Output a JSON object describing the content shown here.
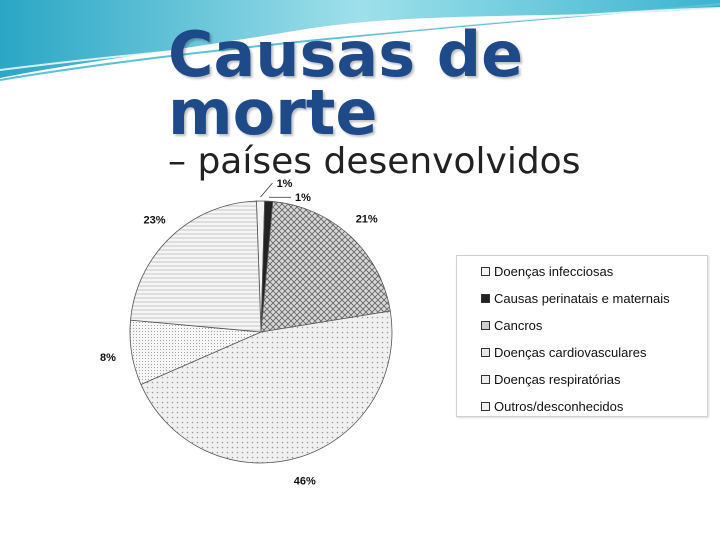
{
  "title": {
    "line1": "Causas de",
    "line2": "morte",
    "subtitle": "– países desenvolvidos"
  },
  "colors": {
    "title": "#1f4a8a",
    "banner": "#5cc3d6"
  },
  "chart_data": {
    "type": "pie",
    "start_angle_deg": -2,
    "slices": [
      {
        "label": "Doenças infecciosas",
        "value": 1,
        "display": "1%",
        "pattern": "light"
      },
      {
        "label": "Causas perinatais e maternais",
        "value": 1,
        "display": "1%",
        "pattern": "dark"
      },
      {
        "label": "Cancros",
        "value": 21,
        "display": "21%",
        "pattern": "crosshatch"
      },
      {
        "label": "Doenças cardiovasculares",
        "value": 46,
        "display": "46%",
        "pattern": "dots"
      },
      {
        "label": "Doenças respiratórias",
        "value": 8,
        "display": "8%",
        "pattern": "finedots"
      },
      {
        "label": "Outros/desconhecidos",
        "value": 23,
        "display": "23%",
        "pattern": "lines"
      }
    ],
    "legend_position": "right"
  }
}
